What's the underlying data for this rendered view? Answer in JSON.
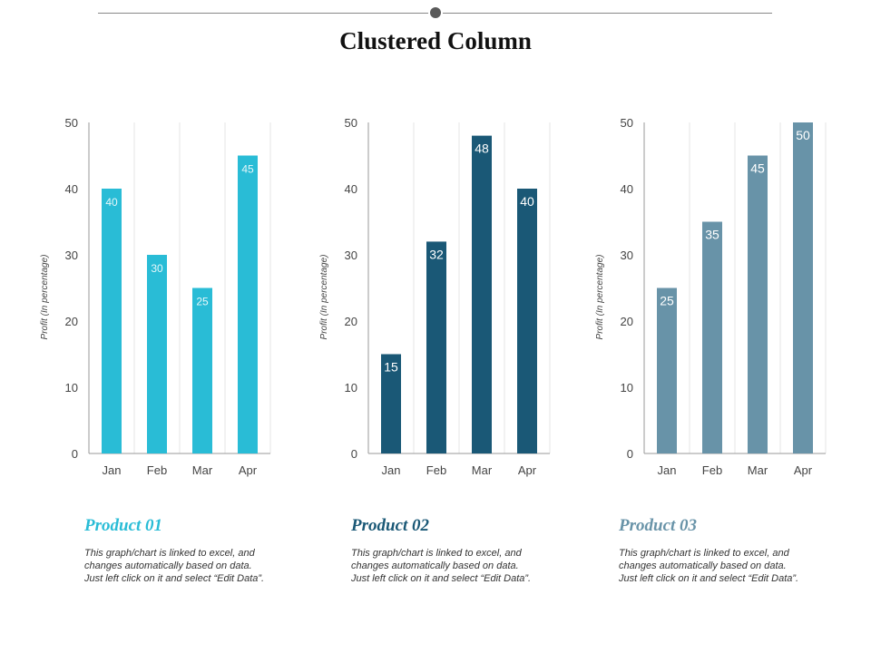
{
  "page": {
    "title": "Clustered Column"
  },
  "captions": [
    {
      "title": "Product 01",
      "color": "#29BCD6",
      "text": "This graph/chart is linked to excel, and changes automatically based on data. Just left click on it and select “Edit Data”."
    },
    {
      "title": "Product 02",
      "color": "#1A5876",
      "text": "This graph/chart is linked to excel, and changes automatically based on data. Just left click on it and select “Edit Data”."
    },
    {
      "title": "Product 03",
      "color": "#6893A8",
      "text": "This graph/chart is linked to excel, and changes automatically based on data. Just left click on it and select “Edit Data”."
    }
  ],
  "chart_data": [
    {
      "type": "bar",
      "categories": [
        "Jan",
        "Feb",
        "Mar",
        "Apr"
      ],
      "values": [
        40,
        30,
        25,
        45
      ],
      "ylabel": "Profit  (In percentage)",
      "ylim": [
        0,
        50
      ],
      "yticks": [
        0,
        10,
        20,
        30,
        40,
        50
      ],
      "grid": "vertical",
      "color": "#29BCD6",
      "label_color": "#E6F7FA"
    },
    {
      "type": "bar",
      "categories": [
        "Jan",
        "Feb",
        "Mar",
        "Apr"
      ],
      "values": [
        15,
        32,
        48,
        40
      ],
      "ylabel": "Profit  (In percentage)",
      "ylim": [
        0,
        50
      ],
      "yticks": [
        0,
        10,
        20,
        30,
        40,
        50
      ],
      "grid": "vertical",
      "color": "#1A5876",
      "label_color": "#FFFFFF"
    },
    {
      "type": "bar",
      "categories": [
        "Jan",
        "Feb",
        "Mar",
        "Apr"
      ],
      "values": [
        25,
        35,
        45,
        50
      ],
      "ylabel": "Profit  (In percentage)",
      "ylim": [
        0,
        50
      ],
      "yticks": [
        0,
        10,
        20,
        30,
        40,
        50
      ],
      "grid": "vertical",
      "color": "#6893A8",
      "label_color": "#FFFFFF"
    }
  ]
}
